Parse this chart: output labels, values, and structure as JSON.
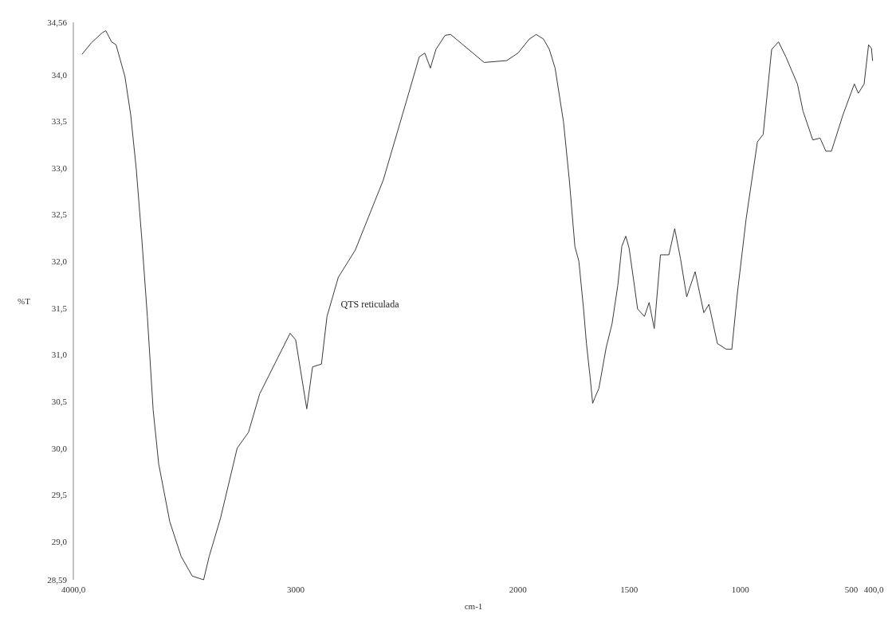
{
  "chart_data": {
    "type": "line",
    "xlabel": "cm-1",
    "ylabel": "%T",
    "annotations": [
      "QTS reticulada"
    ],
    "xlim": [
      4000,
      400
    ],
    "ylim": [
      28.59,
      34.56
    ],
    "xticks": [
      {
        "value": 4000,
        "label": "4000,0"
      },
      3000,
      2000,
      1500,
      1000,
      500,
      {
        "value": 400,
        "label": "400,0"
      }
    ],
    "yticks": [
      {
        "value": 28.59,
        "label": "28,59"
      },
      {
        "value": 29,
        "label": "29,0"
      },
      {
        "value": 29.5,
        "label": "29,5"
      },
      {
        "value": 30,
        "label": "30,0"
      },
      {
        "value": 30.5,
        "label": "30,5"
      },
      {
        "value": 31,
        "label": "31,0"
      },
      {
        "value": 31.5,
        "label": "31,5"
      },
      {
        "value": 32,
        "label": "32,0"
      },
      {
        "value": 32.5,
        "label": "32,5"
      },
      {
        "value": 33,
        "label": "33,0"
      },
      {
        "value": 33.5,
        "label": "33,5"
      },
      {
        "value": 34,
        "label": "34,0"
      },
      {
        "value": 34.56,
        "label": "34,56"
      }
    ],
    "marker": "none",
    "line_style": "solid",
    "x": [
      3960,
      3919,
      3869,
      3854,
      3828,
      3808,
      3768,
      3742,
      3717,
      3692,
      3667,
      3641,
      3616,
      3566,
      3515,
      3465,
      3414,
      3389,
      3338,
      3263,
      3212,
      3162,
      3025,
      3000,
      2950,
      2924,
      2884,
      2859,
      2808,
      2732,
      2606,
      2505,
      2444,
      2419,
      2394,
      2369,
      2328,
      2303,
      2152,
      2051,
      2000,
      1949,
      1918,
      1885,
      1859,
      1833,
      1795,
      1769,
      1744,
      1726,
      1705,
      1692,
      1675,
      1664,
      1654,
      1636,
      1603,
      1577,
      1551,
      1533,
      1515,
      1500,
      1474,
      1462,
      1431,
      1410,
      1387,
      1359,
      1321,
      1295,
      1269,
      1241,
      1203,
      1164,
      1141,
      1103,
      1064,
      1038,
      1013,
      974,
      923,
      897,
      859,
      828,
      795,
      743,
      718,
      674,
      641,
      615,
      590,
      538,
      487,
      469,
      443,
      423,
      410,
      405
    ],
    "series": [
      {
        "color": "#3a3a3a",
        "values": [
          34.22,
          34.34,
          34.45,
          34.47,
          34.35,
          34.32,
          33.98,
          33.57,
          32.99,
          32.24,
          31.41,
          30.41,
          29.83,
          29.21,
          28.84,
          28.63,
          28.59,
          28.84,
          29.25,
          30.0,
          30.17,
          30.58,
          31.23,
          31.16,
          30.42,
          30.87,
          30.9,
          31.41,
          31.83,
          32.12,
          32.87,
          33.69,
          34.19,
          34.23,
          34.07,
          34.27,
          34.42,
          34.43,
          34.13,
          34.15,
          34.23,
          34.38,
          34.43,
          34.38,
          34.27,
          34.07,
          33.49,
          32.87,
          32.16,
          32.0,
          31.49,
          31.12,
          30.75,
          30.48,
          30.54,
          30.64,
          31.08,
          31.33,
          31.74,
          32.16,
          32.27,
          32.14,
          31.7,
          31.49,
          31.41,
          31.56,
          31.28,
          32.07,
          32.07,
          32.35,
          32.03,
          31.62,
          31.89,
          31.45,
          31.54,
          31.12,
          31.06,
          31.06,
          31.66,
          32.45,
          33.28,
          33.36,
          34.27,
          34.35,
          34.19,
          33.9,
          33.61,
          33.3,
          33.32,
          33.18,
          33.18,
          33.57,
          33.9,
          33.8,
          33.9,
          34.32,
          34.28,
          34.15
        ]
      }
    ]
  }
}
